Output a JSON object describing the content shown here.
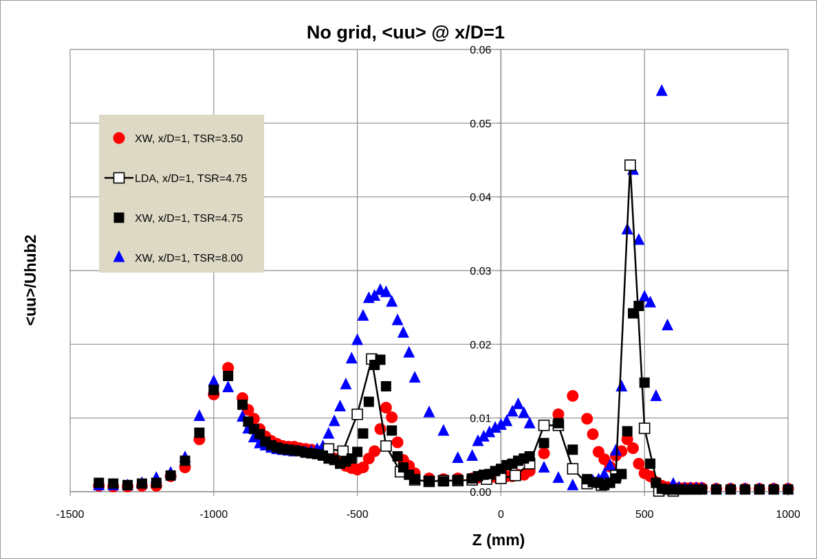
{
  "chart_data": {
    "type": "scatter",
    "title": "No grid, <uu> @ x/D=1",
    "xlabel": "Z (mm)",
    "ylabel": "<uu>/Uhub2",
    "xlim": [
      -1500,
      1000
    ],
    "ylim": [
      0,
      0.06
    ],
    "x_ticks": [
      -1500,
      -1000,
      -500,
      0,
      500,
      1000
    ],
    "y_ticks": [
      0,
      0.01,
      0.02,
      0.03,
      0.04,
      0.05,
      0.06
    ],
    "x_tick_labels": [
      "-1500",
      "-1000",
      "-500",
      "0",
      "500",
      "1000"
    ],
    "y_tick_labels": [
      "0.00",
      "0.01",
      "0.02",
      "0.03",
      "0.04",
      "0.05",
      "0.06"
    ],
    "grid": true,
    "legend_position": "top-left",
    "series": [
      {
        "name": "XW, x/D=1, TSR=3.50",
        "marker": "circle",
        "color": "#ff0000",
        "line": false,
        "x": [
          -1400,
          -1350,
          -1300,
          -1250,
          -1200,
          -1150,
          -1100,
          -1050,
          -1000,
          -950,
          -900,
          -880,
          -860,
          -840,
          -820,
          -800,
          -780,
          -760,
          -740,
          -720,
          -700,
          -680,
          -660,
          -640,
          -620,
          -600,
          -580,
          -560,
          -540,
          -520,
          -500,
          -480,
          -460,
          -440,
          -420,
          -400,
          -380,
          -360,
          -340,
          -320,
          -300,
          -250,
          -200,
          -150,
          -100,
          -80,
          -60,
          -40,
          -20,
          0,
          20,
          40,
          60,
          80,
          100,
          150,
          200,
          250,
          300,
          320,
          340,
          360,
          380,
          400,
          420,
          440,
          460,
          480,
          500,
          520,
          540,
          560,
          580,
          600,
          620,
          640,
          660,
          680,
          700,
          750,
          800,
          850,
          900,
          950,
          1000
        ],
        "y": [
          0.0008,
          0.0007,
          0.0007,
          0.0008,
          0.0008,
          0.0021,
          0.0033,
          0.0071,
          0.0132,
          0.0168,
          0.0127,
          0.0111,
          0.0099,
          0.0085,
          0.0075,
          0.0069,
          0.0065,
          0.0062,
          0.0061,
          0.0061,
          0.0059,
          0.0058,
          0.0057,
          0.0055,
          0.0055,
          0.0053,
          0.0045,
          0.004,
          0.0035,
          0.0032,
          0.003,
          0.0033,
          0.0045,
          0.0055,
          0.0085,
          0.0114,
          0.0101,
          0.0067,
          0.0043,
          0.0035,
          0.0025,
          0.0018,
          0.0017,
          0.0018,
          0.0018,
          0.0019,
          0.002,
          0.0019,
          0.002,
          0.002,
          0.0021,
          0.0021,
          0.0023,
          0.0023,
          0.0028,
          0.0052,
          0.0105,
          0.013,
          0.0099,
          0.0078,
          0.0054,
          0.0044,
          0.0034,
          0.0049,
          0.0055,
          0.0071,
          0.0059,
          0.0038,
          0.0025,
          0.0021,
          0.0013,
          0.0008,
          0.0006,
          0.0005,
          0.0005,
          0.0005,
          0.0005,
          0.0005,
          0.0005,
          0.0004,
          0.0004,
          0.0004,
          0.0004,
          0.0004,
          0.0004
        ]
      },
      {
        "name": "LDA, x/D=1, TSR=4.75",
        "marker": "square-open",
        "color": "#000000",
        "line": true,
        "x": [
          -600,
          -550,
          -500,
          -450,
          -400,
          -350,
          -300,
          -250,
          -200,
          -150,
          -100,
          -50,
          0,
          50,
          100,
          150,
          200,
          250,
          300,
          350,
          400,
          450,
          500,
          550,
          600
        ],
        "y": [
          0.0058,
          0.0055,
          0.0105,
          0.018,
          0.0062,
          0.0027,
          0.0016,
          0.0014,
          0.0015,
          0.0015,
          0.0016,
          0.0017,
          0.0018,
          0.0022,
          0.0038,
          0.009,
          0.009,
          0.0031,
          0.0011,
          0.0009,
          0.0022,
          0.0443,
          0.0086,
          0.0001,
          0.0001
        ]
      },
      {
        "name": "XW, x/D=1, TSR=4.75",
        "marker": "square",
        "color": "#000000",
        "line": false,
        "x": [
          -1400,
          -1350,
          -1300,
          -1250,
          -1200,
          -1150,
          -1100,
          -1050,
          -1000,
          -950,
          -900,
          -880,
          -860,
          -840,
          -820,
          -800,
          -780,
          -760,
          -740,
          -720,
          -700,
          -680,
          -660,
          -640,
          -620,
          -600,
          -580,
          -560,
          -540,
          -520,
          -500,
          -480,
          -460,
          -440,
          -420,
          -400,
          -380,
          -360,
          -340,
          -320,
          -300,
          -250,
          -200,
          -150,
          -100,
          -80,
          -60,
          -40,
          -20,
          0,
          20,
          40,
          60,
          80,
          100,
          150,
          200,
          250,
          300,
          320,
          340,
          360,
          380,
          400,
          420,
          440,
          460,
          480,
          500,
          520,
          540,
          560,
          580,
          600,
          620,
          640,
          660,
          680,
          700,
          750,
          800,
          850,
          900,
          950,
          1000
        ],
        "y": [
          0.0012,
          0.0011,
          0.0009,
          0.0011,
          0.0012,
          0.0022,
          0.0042,
          0.008,
          0.0138,
          0.0157,
          0.0118,
          0.0095,
          0.0085,
          0.0078,
          0.0068,
          0.0063,
          0.006,
          0.0058,
          0.0057,
          0.0056,
          0.0055,
          0.0053,
          0.0052,
          0.0051,
          0.0049,
          0.0045,
          0.0043,
          0.0038,
          0.0041,
          0.0045,
          0.0054,
          0.0079,
          0.0122,
          0.0172,
          0.0179,
          0.0143,
          0.0083,
          0.0048,
          0.0033,
          0.0023,
          0.0017,
          0.0014,
          0.0014,
          0.0016,
          0.0018,
          0.0021,
          0.0023,
          0.0024,
          0.0028,
          0.0031,
          0.0036,
          0.0038,
          0.0042,
          0.0045,
          0.0048,
          0.0066,
          0.0093,
          0.0057,
          0.0017,
          0.0013,
          0.0012,
          0.0009,
          0.0012,
          0.0018,
          0.0024,
          0.0082,
          0.0242,
          0.0252,
          0.0148,
          0.0038,
          0.0012,
          0.0004,
          0.0003,
          0.0003,
          0.0003,
          0.0003,
          0.0003,
          0.0003,
          0.0003,
          0.0003,
          0.0003,
          0.0003,
          0.0003,
          0.0003,
          0.0003
        ]
      },
      {
        "name": "XW, x/D=1, TSR=8.00",
        "marker": "triangle",
        "color": "#0000ff",
        "line": false,
        "x": [
          -1400,
          -1350,
          -1300,
          -1250,
          -1200,
          -1150,
          -1100,
          -1050,
          -1000,
          -950,
          -900,
          -880,
          -860,
          -840,
          -820,
          -800,
          -780,
          -760,
          -740,
          -720,
          -700,
          -680,
          -660,
          -640,
          -620,
          -600,
          -580,
          -560,
          -540,
          -520,
          -500,
          -480,
          -460,
          -440,
          -420,
          -400,
          -380,
          -360,
          -340,
          -320,
          -300,
          -250,
          -200,
          -150,
          -100,
          -80,
          -60,
          -40,
          -20,
          0,
          20,
          40,
          60,
          80,
          100,
          150,
          200,
          250,
          300,
          320,
          340,
          360,
          380,
          400,
          420,
          440,
          460,
          480,
          500,
          520,
          540,
          560,
          580,
          600,
          620,
          640,
          660,
          680,
          700,
          750,
          800,
          850,
          900,
          950,
          1000
        ],
        "y": [
          0.0008,
          0.0008,
          0.0008,
          0.0011,
          0.0018,
          0.0025,
          0.0046,
          0.0102,
          0.0149,
          0.0141,
          0.0101,
          0.0085,
          0.0073,
          0.0065,
          0.0062,
          0.0059,
          0.0057,
          0.0056,
          0.0055,
          0.0054,
          0.0054,
          0.0053,
          0.0054,
          0.0057,
          0.0061,
          0.0078,
          0.0095,
          0.0115,
          0.0145,
          0.018,
          0.0205,
          0.0238,
          0.0262,
          0.0265,
          0.0273,
          0.027,
          0.0257,
          0.0232,
          0.0215,
          0.0188,
          0.0154,
          0.0107,
          0.0082,
          0.0045,
          0.0048,
          0.0068,
          0.0074,
          0.008,
          0.0086,
          0.009,
          0.0095,
          0.0108,
          0.0118,
          0.0106,
          0.0092,
          0.0032,
          0.0018,
          0.0008,
          0.0011,
          0.0014,
          0.0016,
          0.0023,
          0.0035,
          0.0055,
          0.0142,
          0.0355,
          0.0436,
          0.0341,
          0.0264,
          0.0256,
          0.0129,
          0.0543,
          0.0225,
          0.001,
          0.0005,
          0.0004,
          0.0004,
          0.0004,
          0.0004,
          0.0003,
          0.0003,
          0.0003,
          0.0003,
          0.0003,
          0.0003
        ]
      }
    ]
  }
}
